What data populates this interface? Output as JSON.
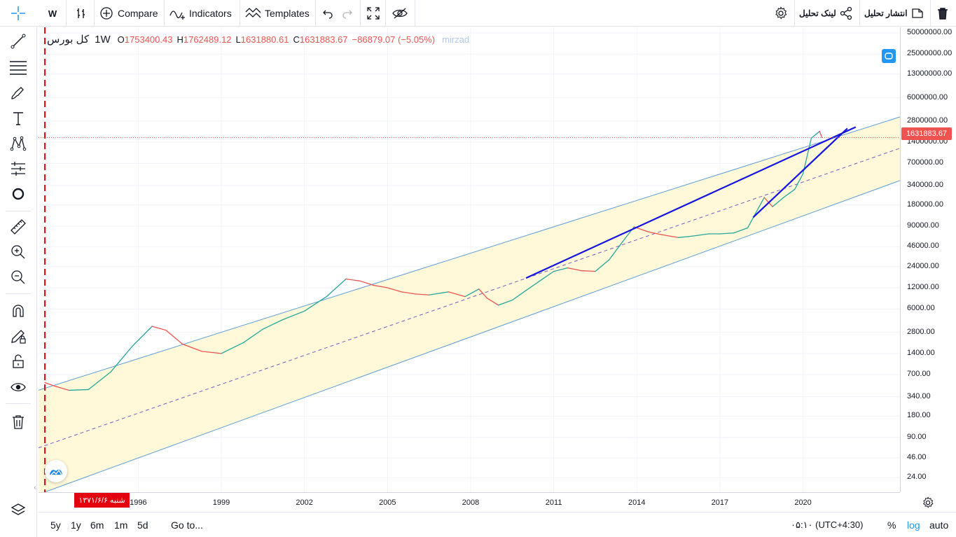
{
  "toolbar": {
    "interval": "W",
    "compare_label": "Compare",
    "indicators_label": "Indicators",
    "templates_label": "Templates",
    "publish_label": "انتشار تحلیل",
    "share_label": "لینک تحلیل"
  },
  "legend": {
    "symbol": "کل بورس",
    "timeframe": "1W",
    "open_key": "O",
    "open": "1753400.43",
    "high_key": "H",
    "high": "1762489.12",
    "low_key": "L",
    "low": "1631880.61",
    "close_key": "C",
    "close": "1631883.67",
    "change": "−86879.07 (−5.05%)",
    "watermark": "mirzad"
  },
  "price_axis": {
    "labels": [
      "50000000.00",
      "25000000.00",
      "13000000.00",
      "6000000.00",
      "2800000.00",
      "1400000.00",
      "700000.00",
      "340000.00",
      "180000.00",
      "90000.00",
      "46000.00",
      "24000.00",
      "12000.00",
      "6000.00",
      "2800.00",
      "1400.00",
      "700.00",
      "340.00",
      "180.00",
      "90.00",
      "46.00",
      "24.00"
    ],
    "last_price": "1631883.67"
  },
  "time_axis": {
    "labels": [
      "1996",
      "1999",
      "2002",
      "2005",
      "2008",
      "2011",
      "2014",
      "2017",
      "2020"
    ],
    "cursor_date": "شنبه ۱۳۷۱/۶/۶"
  },
  "bottom": {
    "ranges": [
      "5y",
      "1y",
      "6m",
      "1m",
      "5d"
    ],
    "goto_label": "Go to...",
    "clock": "۰۵:۱۰ (UTC+4:30)",
    "percent_label": "%",
    "log_label": "log",
    "auto_label": "auto"
  },
  "colors": {
    "accent": "#2196f3",
    "up": "#26a69a",
    "down": "#ef5350",
    "channel_fill": "#fff9d9",
    "channel_line": "#5b9bd5",
    "trendline": "#1515e0",
    "cursor_line": "#e3000f"
  },
  "chart_data": {
    "type": "line",
    "scale": "log",
    "symbol": "کل بورس",
    "timeframe": "1W",
    "ylim": [
      15,
      60000000
    ],
    "xlim": [
      1992.4,
      2023.5
    ],
    "x_ticks": [
      1996,
      1999,
      2002,
      2005,
      2008,
      2011,
      2014,
      2017,
      2020
    ],
    "series": [
      {
        "x": [
          1992.63,
          1993.0,
          1993.5,
          1994.2,
          1995.0,
          1995.8,
          1996.5,
          1997.0,
          1997.6,
          1998.3,
          1999.0,
          1999.8,
          2000.5,
          2001.2,
          2002.0,
          2002.8,
          2003.5,
          2004.0,
          2004.5,
          2005.0,
          2005.5,
          2006.0,
          2006.5,
          2007.2,
          2007.8,
          2008.3,
          2008.6,
          2009.0,
          2009.5,
          2010.0,
          2010.6,
          2011.0,
          2011.5,
          2012.0,
          2012.5,
          2013.0,
          2013.5,
          2013.9,
          2014.4,
          2014.9,
          2015.5,
          2016.0,
          2016.6,
          2017.0,
          2017.5,
          2018.0,
          2018.3,
          2018.6,
          2018.9,
          2019.3,
          2019.7,
          2020.0,
          2020.3,
          2020.6,
          2020.68
        ],
        "values": [
          540,
          480,
          420,
          430,
          760,
          1800,
          3400,
          3000,
          1900,
          1500,
          1400,
          2000,
          3100,
          4200,
          5600,
          9000,
          16000,
          15000,
          13000,
          12000,
          10500,
          9800,
          9500,
          10500,
          9000,
          11500,
          8500,
          6800,
          8000,
          11000,
          16000,
          20500,
          23000,
          21000,
          20500,
          30000,
          55000,
          88000,
          75000,
          68000,
          62000,
          65000,
          70000,
          70000,
          72000,
          85000,
          140000,
          230000,
          170000,
          230000,
          300000,
          500000,
          1600000,
          2000000,
          1631883.67
        ]
      }
    ],
    "channel": {
      "upper": {
        "x": [
          1992.4,
          2023.5
        ],
        "y": [
          420,
          3200000
        ]
      },
      "median": {
        "x": [
          1992.4,
          2023.5
        ],
        "y": [
          64,
          1150000
        ]
      },
      "lower": {
        "x": [
          1992.4,
          2023.5
        ],
        "y": [
          14,
          400000
        ]
      }
    },
    "trendlines": [
      {
        "x": [
          2010.0,
          2021.9
        ],
        "y": [
          16500,
          2300000
        ]
      },
      {
        "x": [
          2018.2,
          2021.6
        ],
        "y": [
          120000,
          2200000
        ]
      }
    ],
    "last_price": 1631883.67,
    "cursor_x": 1992.63
  }
}
